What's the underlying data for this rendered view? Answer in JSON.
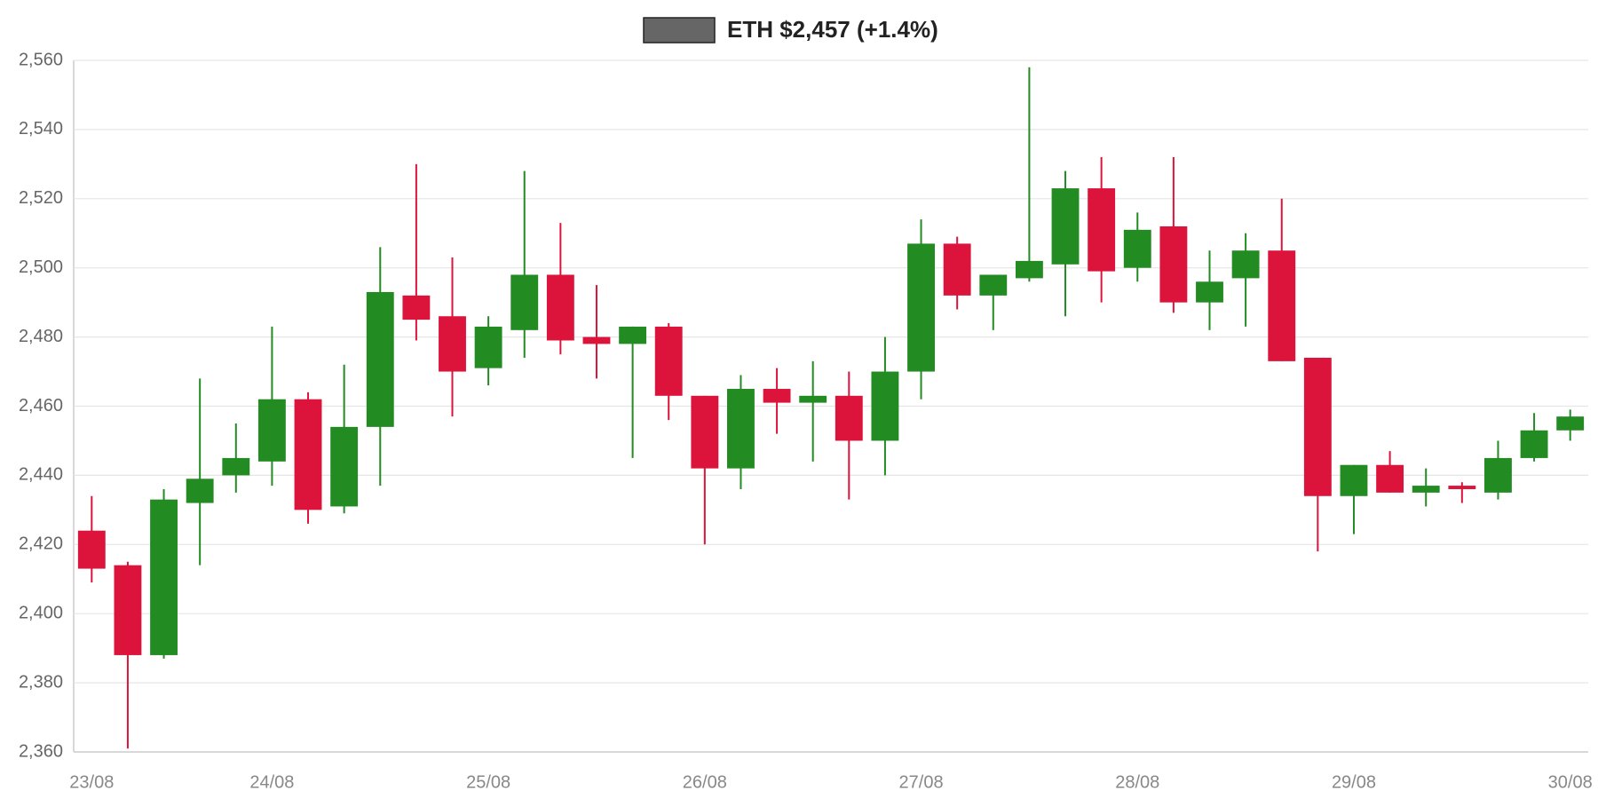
{
  "chart_data": {
    "type": "candlestick",
    "categories": [
      "23/08",
      null,
      null,
      null,
      null,
      "24/08",
      null,
      null,
      null,
      null,
      null,
      "25/08",
      null,
      null,
      null,
      null,
      null,
      "26/08",
      null,
      null,
      null,
      null,
      null,
      "27/08",
      null,
      null,
      null,
      null,
      null,
      "28/08",
      null,
      null,
      null,
      null,
      null,
      "29/08",
      null,
      null,
      null,
      null,
      null,
      "30/08"
    ],
    "series": [
      {
        "name": "ETH $2,457 (+1.4%)",
        "color": "#666666",
        "open": [
          2424,
          2414,
          2388,
          2432,
          2440,
          2444,
          2462,
          2431,
          2454,
          2492,
          2486,
          2471,
          2482,
          2498,
          2480,
          2478,
          2483,
          2463,
          2442,
          2465,
          2461,
          2463,
          2450,
          2470,
          2507,
          2492,
          2497,
          2501,
          2523,
          2500,
          2512,
          2490,
          2497,
          2505,
          2474,
          2434,
          2443,
          2435,
          2437,
          2435,
          2445,
          2453
        ],
        "high": [
          2434,
          2415,
          2436,
          2468,
          2455,
          2483,
          2464,
          2472,
          2506,
          2530,
          2503,
          2486,
          2528,
          2513,
          2495,
          2483,
          2484,
          2463,
          2469,
          2471,
          2473,
          2470,
          2480,
          2514,
          2509,
          2498,
          2558,
          2528,
          2532,
          2516,
          2532,
          2505,
          2510,
          2520,
          2474,
          2443,
          2447,
          2442,
          2438,
          2450,
          2458,
          2459
        ],
        "low": [
          2409,
          2361,
          2387,
          2414,
          2435,
          2437,
          2426,
          2429,
          2437,
          2479,
          2457,
          2466,
          2474,
          2475,
          2468,
          2445,
          2456,
          2420,
          2436,
          2452,
          2444,
          2433,
          2440,
          2462,
          2488,
          2482,
          2496,
          2486,
          2490,
          2496,
          2487,
          2482,
          2483,
          2473,
          2418,
          2423,
          2435,
          2431,
          2432,
          2433,
          2444,
          2450
        ],
        "close": [
          2413,
          2388,
          2433,
          2439,
          2445,
          2462,
          2430,
          2454,
          2493,
          2485,
          2470,
          2483,
          2498,
          2479,
          2478,
          2483,
          2463,
          2442,
          2465,
          2461,
          2463,
          2450,
          2470,
          2507,
          2492,
          2498,
          2502,
          2523,
          2499,
          2511,
          2490,
          2496,
          2505,
          2473,
          2434,
          2443,
          2435,
          2437,
          2436,
          2445,
          2453,
          2457
        ]
      }
    ],
    "up_color": "#228b22",
    "down_color": "#dc143c",
    "ylim": [
      2360,
      2560
    ],
    "yticks": [
      {
        "value": 2360,
        "label": "2,360"
      },
      {
        "value": 2380,
        "label": "2,380"
      },
      {
        "value": 2400,
        "label": "2,400"
      },
      {
        "value": 2420,
        "label": "2,420"
      },
      {
        "value": 2440,
        "label": "2,440"
      },
      {
        "value": 2460,
        "label": "2,460"
      },
      {
        "value": 2480,
        "label": "2,480"
      },
      {
        "value": 2500,
        "label": "2,500"
      },
      {
        "value": 2520,
        "label": "2,520"
      },
      {
        "value": 2540,
        "label": "2,540"
      },
      {
        "value": 2560,
        "label": "2,560"
      }
    ],
    "grid": true
  }
}
